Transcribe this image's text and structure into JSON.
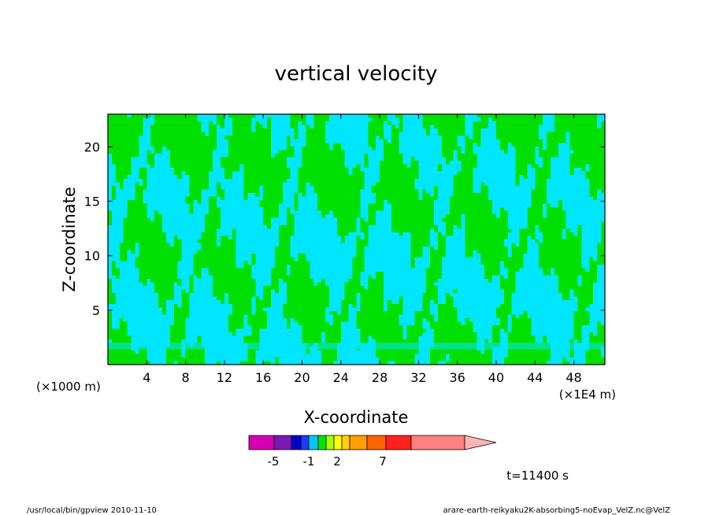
{
  "chart_data": {
    "type": "heatmap",
    "title": "vertical velocity",
    "xlabel": "X-coordinate",
    "ylabel": "Z-coordinate",
    "x_unit_left": "(×1000 m)",
    "x_unit_right": "(×1E4 m)",
    "xlim": [
      0,
      51.2
    ],
    "ylim": [
      0,
      23
    ],
    "x_ticks": [
      4,
      8,
      12,
      16,
      20,
      24,
      28,
      32,
      36,
      40,
      44,
      48
    ],
    "y_ticks": [
      5,
      10,
      15,
      20
    ],
    "colorbar": {
      "colors": [
        "#d400b4",
        "#7a1ab4",
        "#0000c8",
        "#1e3cff",
        "#00c8ff",
        "#00e600",
        "#aaff00",
        "#ffff00",
        "#ffd200",
        "#ffa000",
        "#ff6400",
        "#ff2020",
        "#ff8080",
        "#ffb4b4"
      ],
      "labels": [
        "-5",
        "-1",
        "2",
        "7"
      ]
    },
    "field_colors": {
      "negative": "#00e6ff",
      "positive": "#00e000",
      "contour": "#000000"
    }
  },
  "time_label": "t=11400 s",
  "footer": {
    "left": "/usr/local/bin/gpview  2010-11-10",
    "right": "arare-earth-reikyaku2K-absorbing5-noEvap_VelZ.nc@VelZ"
  }
}
